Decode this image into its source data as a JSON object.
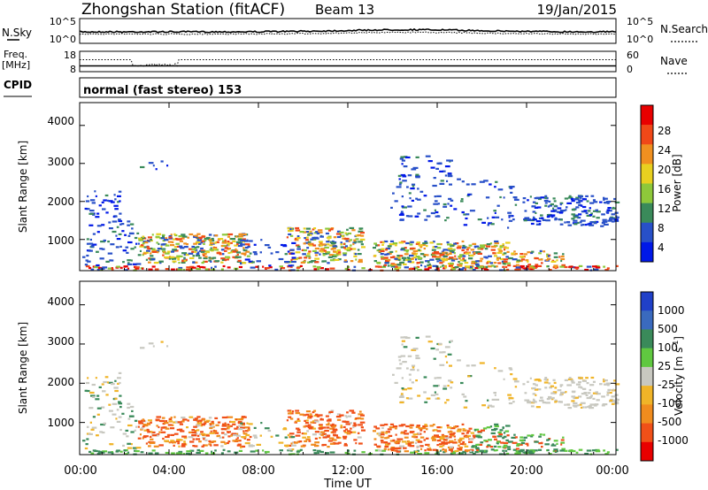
{
  "header": {
    "station": "Zhongshan Station (fitACF)",
    "beam": "Beam 13",
    "date": "19/Jan/2015"
  },
  "noise_panel": {
    "left_label": "N.Sky",
    "left_ticks": [
      "10^5",
      "10^0"
    ],
    "right_ticks": [
      "10^5",
      "10^0"
    ],
    "right_label": "N.Search"
  },
  "freq_panel": {
    "left_label_1": "Freq.",
    "left_label_2": "[MHz]",
    "left_ticks": [
      "18",
      "8"
    ],
    "right_ticks": [
      "60",
      "0"
    ],
    "right_label": "Nave"
  },
  "cpid": {
    "label": "CPID",
    "value": "normal (fast stereo) 153"
  },
  "chart_data": [
    {
      "type": "heatmap",
      "quantity": "Power",
      "ylabel": "Slant Range [km]",
      "xlabel": "",
      "ylim": [
        180,
        4600
      ],
      "xlim": [
        0,
        24
      ],
      "yticks": [
        "1000",
        "2000",
        "3000",
        "4000"
      ],
      "colorbar": {
        "label": "Power [dB]",
        "tick_labels": [
          "4",
          "8",
          "12",
          "16",
          "20",
          "24",
          "28"
        ],
        "colors": [
          "#0018e8",
          "#2850c8",
          "#3a8a5a",
          "#8ec83a",
          "#e8d020",
          "#f09020",
          "#f04818",
          "#e80000"
        ]
      }
    },
    {
      "type": "heatmap",
      "quantity": "Velocity",
      "ylabel": "Slant Range [km]",
      "xlabel": "Time UT",
      "ylim": [
        180,
        4600
      ],
      "xlim": [
        0,
        24
      ],
      "yticks": [
        "1000",
        "2000",
        "3000",
        "4000"
      ],
      "xticks": [
        "00:00",
        "04:00",
        "08:00",
        "12:00",
        "16:00",
        "20:00",
        "00:00"
      ],
      "colorbar": {
        "label_main": "Velocity [m s",
        "label_sup": "-1",
        "label_end": "]",
        "tick_labels": [
          "1000",
          "500",
          "100",
          "25",
          "-25",
          "-100",
          "-500",
          "-1000"
        ],
        "colors": [
          "#2040c8",
          "#3a6abe",
          "#3a8a5a",
          "#60c840",
          "#c8c8c0",
          "#f0b428",
          "#f08c1e",
          "#f05018",
          "#e80000"
        ]
      }
    }
  ]
}
